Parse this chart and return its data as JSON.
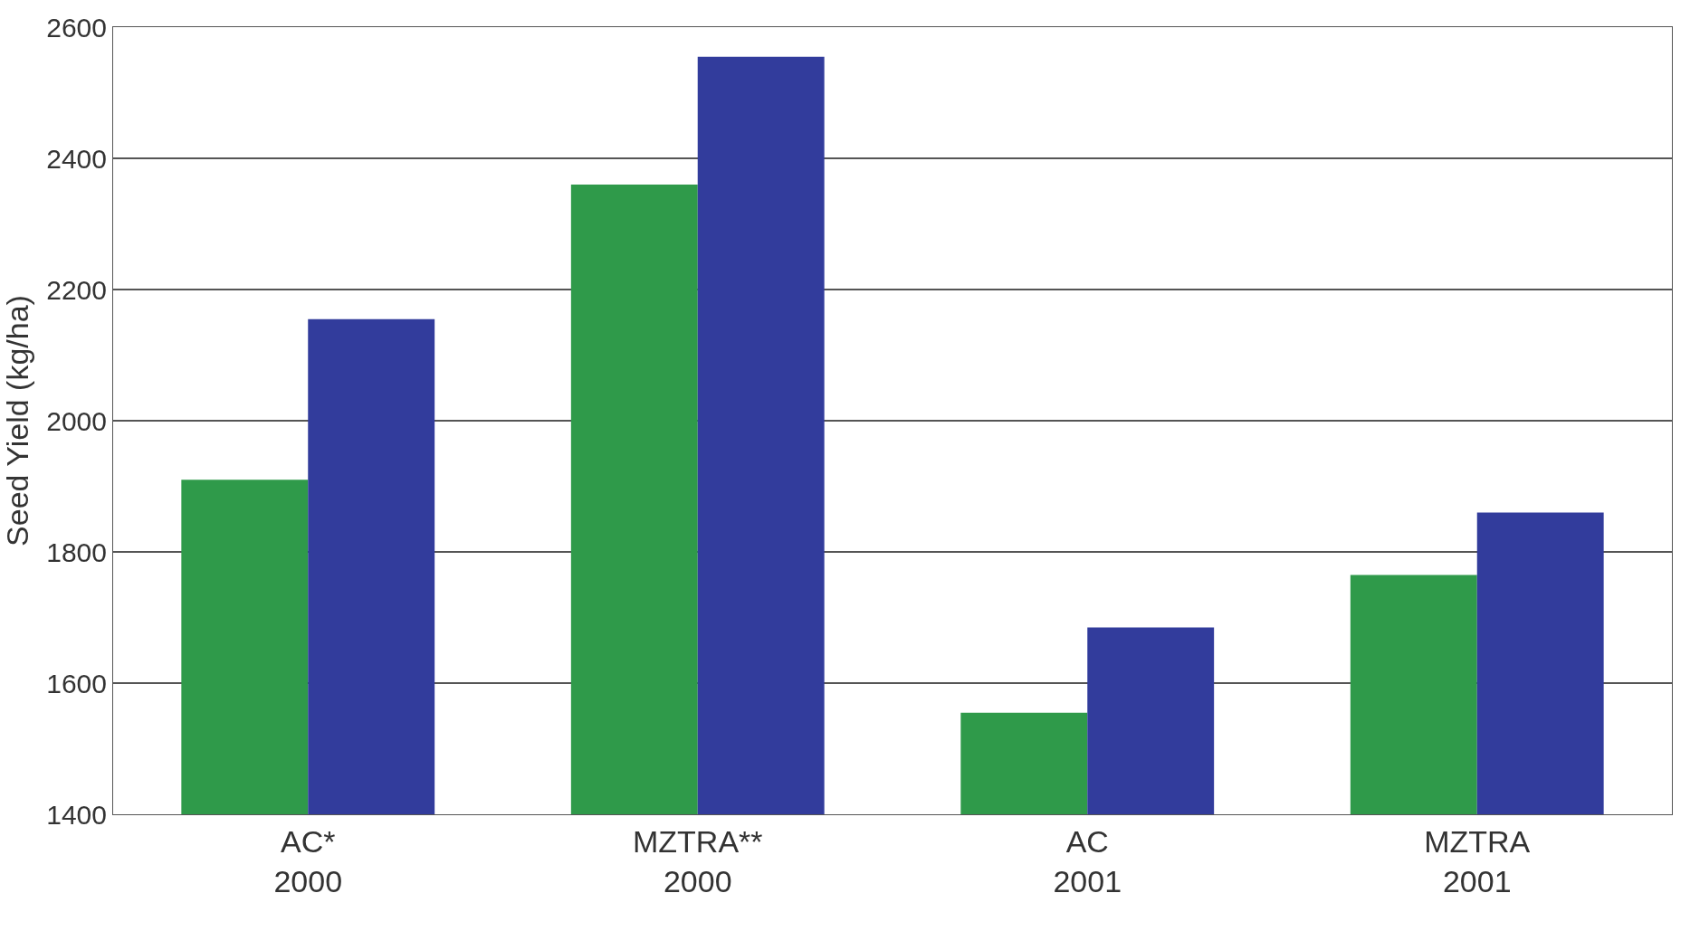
{
  "chart_data": {
    "type": "bar",
    "ylabel": "Seed Yield (kg/ha)",
    "categories": [
      "AC*\n2000",
      "MZTRA**\n2000",
      "AC\n2001",
      "MZTRA\n2001"
    ],
    "series": [
      {
        "color": "#2f9a4a",
        "values": [
          1910,
          2360,
          1555,
          1765
        ]
      },
      {
        "color": "#323c9c",
        "values": [
          2155,
          2555,
          1685,
          1860
        ]
      }
    ],
    "ylim": [
      1400,
      2600
    ],
    "yticks": [
      1400,
      1600,
      1800,
      2000,
      2200,
      2400,
      2600
    ],
    "grid": "y"
  }
}
